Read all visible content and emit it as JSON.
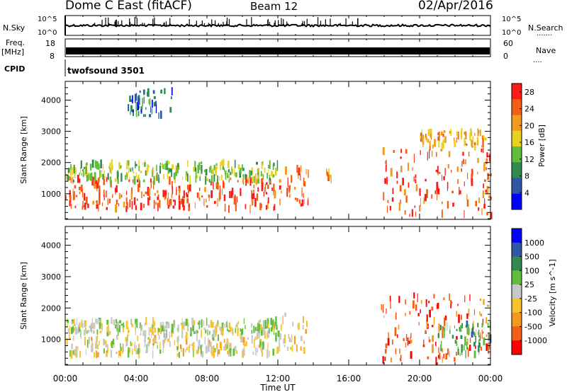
{
  "header": {
    "station": "Dome C East (fitACF)",
    "beam": "Beam 12",
    "date": "02/Apr/2016"
  },
  "panels": {
    "nsky_label": "N.Sky",
    "nsearch_label": "N.Search",
    "nsky_ticks": [
      "10^5",
      "10^0"
    ],
    "nsearch_ticks": [
      "10^5",
      "10^0"
    ],
    "freq_label_line1": "Freq.",
    "freq_label_line2": "[MHz]",
    "freq_ticks": [
      "18",
      "8"
    ],
    "nave_label": "Nave",
    "nave_ticks": [
      "60",
      "0"
    ],
    "cpid_label": "CPID",
    "cpid_value": "twofsound 3501"
  },
  "colors": {
    "power_scale": [
      "#0000ff",
      "#2f57a6",
      "#2f8a4e",
      "#5fbf3c",
      "#e8d21e",
      "#f39a1e",
      "#f25f14",
      "#ff1a1a"
    ],
    "velocity_scale": [
      "#ff0000",
      "#f25f14",
      "#f39a1e",
      "#f6c42a",
      "#c8c8c8",
      "#5fbf3c",
      "#2f8a4e",
      "#2f57a6",
      "#0000ff"
    ]
  },
  "chart_data": [
    {
      "type": "heatmap",
      "title": "",
      "xlabel": "Time UT",
      "ylabel": "Slant Range [km]",
      "x_ticks": [
        "00:00",
        "04:00",
        "08:00",
        "12:00",
        "16:00",
        "20:00",
        "00:00"
      ],
      "xlim_hours": [
        0,
        24
      ],
      "y_ticks": [
        1000,
        2000,
        3000,
        4000
      ],
      "ylim": [
        180,
        4600
      ],
      "colorbar": {
        "label": "Power [dB]",
        "ticks": [
          "4",
          "8",
          "12",
          "16",
          "20",
          "24",
          "28"
        ],
        "range": [
          0,
          30
        ]
      },
      "echo_regions": [
        {
          "t_start": 0.0,
          "t_end": 12.0,
          "r_min": 500,
          "r_max": 1500,
          "value": 26
        },
        {
          "t_start": 0.0,
          "t_end": 12.0,
          "r_min": 1400,
          "r_max": 2000,
          "value": 14
        },
        {
          "t_start": 12.0,
          "t_end": 13.7,
          "r_min": 600,
          "r_max": 1800,
          "value": 24
        },
        {
          "t_start": 14.7,
          "t_end": 15.0,
          "r_min": 1400,
          "r_max": 1900,
          "value": 20
        },
        {
          "t_start": 17.8,
          "t_end": 24.0,
          "r_min": 300,
          "r_max": 2400,
          "value": 26
        },
        {
          "t_start": 20.0,
          "t_end": 23.8,
          "r_min": 2500,
          "r_max": 3000,
          "value": 20
        },
        {
          "t_start": 3.5,
          "t_end": 6.0,
          "r_min": 3500,
          "r_max": 4300,
          "value": 8
        }
      ]
    },
    {
      "type": "heatmap",
      "title": "",
      "xlabel": "Time UT",
      "ylabel": "Slant Range [km]",
      "x_ticks": [
        "00:00",
        "04:00",
        "08:00",
        "12:00",
        "16:00",
        "20:00",
        "00:00"
      ],
      "xlim_hours": [
        0,
        24
      ],
      "y_ticks": [
        1000,
        2000,
        3000,
        4000
      ],
      "ylim": [
        180,
        4600
      ],
      "colorbar": {
        "label": "Velocity [m s^-1]",
        "ticks": [
          "1000",
          "500",
          "100",
          "25",
          "-25",
          "-100",
          "-500",
          "-1000"
        ],
        "range": [
          -1000,
          1000
        ]
      },
      "echo_regions": [
        {
          "t_start": 0.0,
          "t_end": 12.0,
          "r_min": 500,
          "r_max": 1200,
          "value": 100
        },
        {
          "t_start": 0.0,
          "t_end": 12.0,
          "r_min": 1200,
          "r_max": 1600,
          "value": -20
        },
        {
          "t_start": 12.0,
          "t_end": 13.7,
          "r_min": 600,
          "r_max": 1800,
          "value": 200
        },
        {
          "t_start": 17.8,
          "t_end": 24.0,
          "r_min": 300,
          "r_max": 2400,
          "value": 700
        },
        {
          "t_start": 21.0,
          "t_end": 24.0,
          "r_min": 500,
          "r_max": 1500,
          "value": -300
        }
      ]
    }
  ]
}
